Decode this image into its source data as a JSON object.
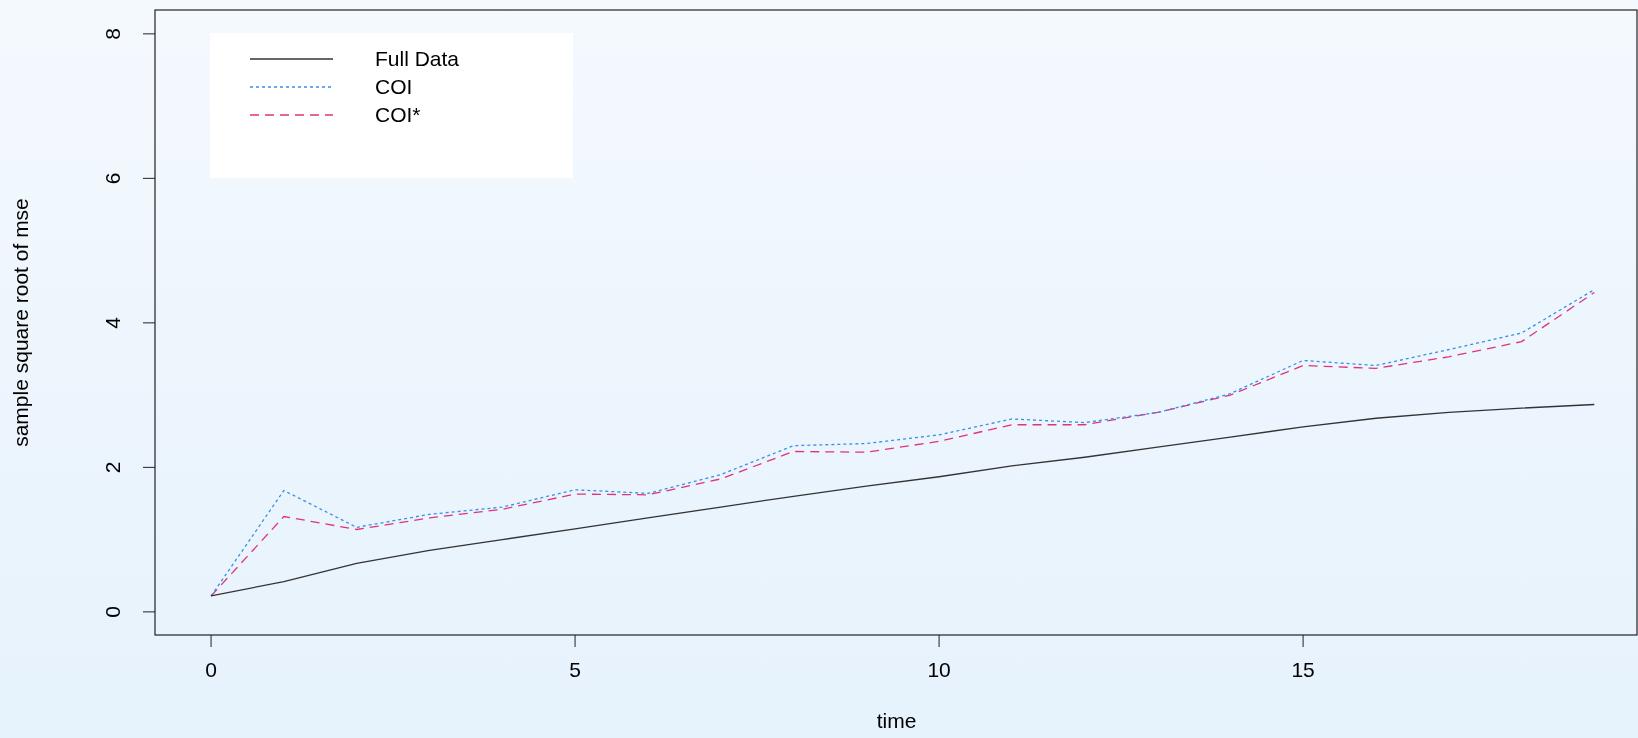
{
  "chart_data": {
    "type": "line",
    "xlabel": "time",
    "ylabel": "sample square root of mse",
    "x": [
      0,
      1,
      2,
      3,
      4,
      5,
      6,
      7,
      8,
      9,
      10,
      11,
      12,
      13,
      14,
      15,
      16,
      17,
      18,
      19
    ],
    "xlim": [
      -0.77,
      19.6
    ],
    "xticks": [
      0,
      5,
      10,
      15
    ],
    "ylim": [
      -0.32,
      8.33
    ],
    "yticks": [
      0,
      2,
      4,
      6,
      8
    ],
    "legend": "top left",
    "grid": false,
    "marker": "none",
    "series": [
      {
        "name": "Full Data",
        "color": "#333333",
        "line_style": "solid",
        "values": [
          0.22,
          0.42,
          0.67,
          0.85,
          1.0,
          1.15,
          1.3,
          1.45,
          1.6,
          1.74,
          1.87,
          2.02,
          2.14,
          2.28,
          2.42,
          2.56,
          2.68,
          2.76,
          2.82,
          2.87
        ]
      },
      {
        "name": "COI",
        "color": "#3a8ee6",
        "line_style": "dotted",
        "values": [
          0.22,
          1.68,
          1.17,
          1.35,
          1.45,
          1.69,
          1.64,
          1.9,
          2.3,
          2.33,
          2.45,
          2.67,
          2.62,
          2.76,
          3.02,
          3.48,
          3.41,
          3.63,
          3.86,
          4.46
        ]
      },
      {
        "name": "COI*",
        "color": "#e0337a",
        "line_style": "dashed",
        "values": [
          0.22,
          1.32,
          1.14,
          1.3,
          1.42,
          1.63,
          1.62,
          1.84,
          2.22,
          2.21,
          2.36,
          2.59,
          2.59,
          2.76,
          3.0,
          3.41,
          3.37,
          3.53,
          3.74,
          4.42
        ]
      }
    ]
  }
}
